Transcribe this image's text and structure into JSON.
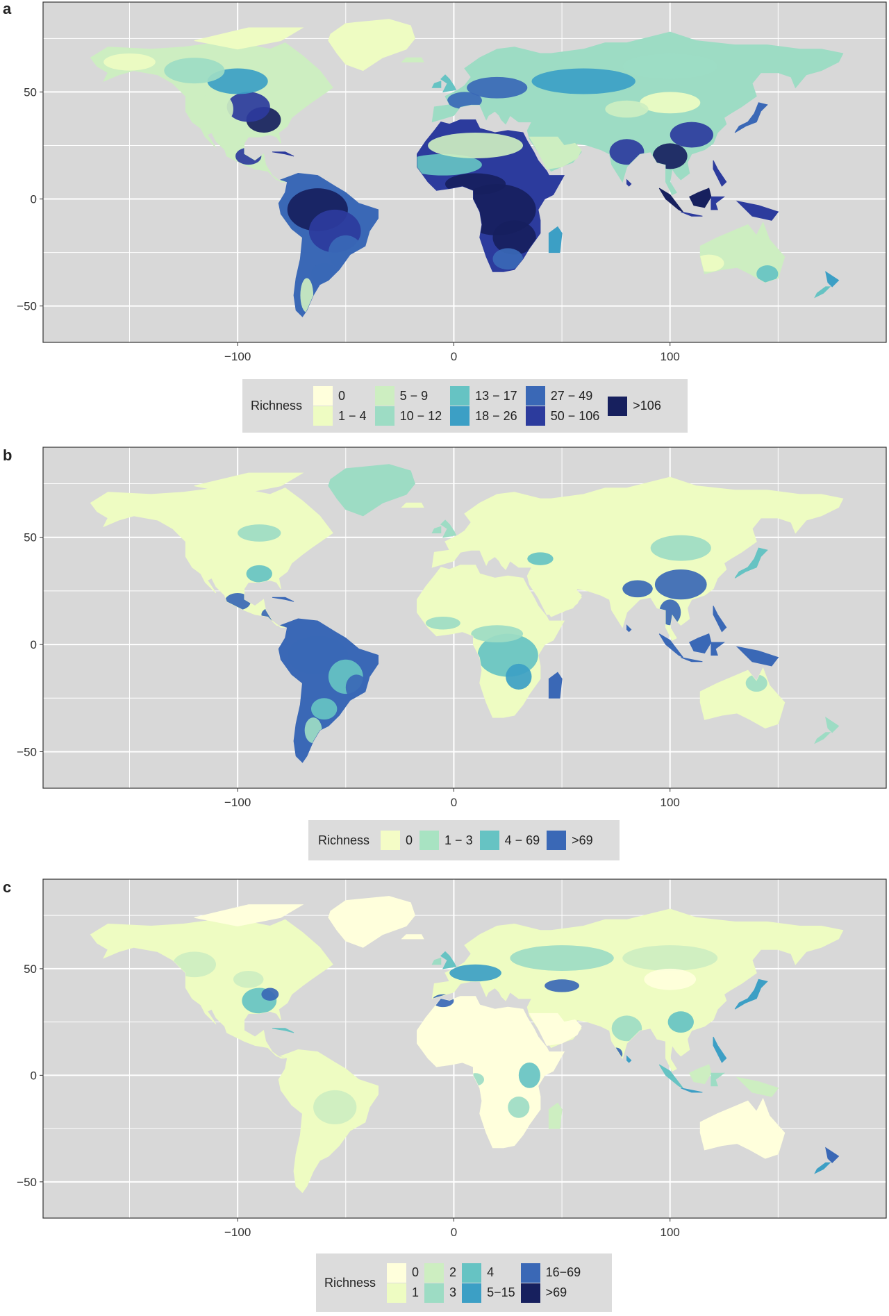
{
  "colors": {
    "panel_bg": "#d8d8d8",
    "grid": "#ffffff",
    "c0": "#ffffdc",
    "c1": "#eefcc2",
    "c2": "#cdeec1",
    "c3": "#9ddcc4",
    "c4": "#66c3c3",
    "c5": "#3c9fc5",
    "c6": "#3a68b6",
    "c7": "#2c3b9d",
    "c8": "#17205e"
  },
  "chart_data": [
    {
      "type": "heatmap",
      "panel": "a",
      "x_ticks": [
        -100,
        0,
        100
      ],
      "y_ticks": [
        50,
        0,
        -50
      ],
      "xlim": [
        -190,
        200
      ],
      "ylim": [
        -67,
        92
      ],
      "grid": true,
      "legend": {
        "title": "Richness",
        "position": "bottom",
        "entries": [
          {
            "label": "0",
            "color": "#ffffdc"
          },
          {
            "label": "1 − 4",
            "color": "#eefcc2"
          },
          {
            "label": "5 − 9",
            "color": "#cdeec1"
          },
          {
            "label": "10 − 12",
            "color": "#9ddcc4"
          },
          {
            "label": "13 − 17",
            "color": "#66c3c3"
          },
          {
            "label": "18 − 26",
            "color": "#3c9fc5"
          },
          {
            "label": "27 − 49",
            "color": "#3a68b6"
          },
          {
            "label": "50 − 106",
            "color": "#2c3b9d"
          },
          {
            "label": ">106",
            "color": "#17205e"
          }
        ]
      }
    },
    {
      "type": "heatmap",
      "panel": "b",
      "x_ticks": [
        -100,
        0,
        100
      ],
      "y_ticks": [
        50,
        0,
        -50
      ],
      "xlim": [
        -190,
        200
      ],
      "ylim": [
        -67,
        92
      ],
      "grid": true,
      "legend": {
        "title": "Richness",
        "position": "bottom",
        "entries": [
          {
            "label": "0",
            "color": "#f4fcc6"
          },
          {
            "label": "1 − 3",
            "color": "#a8e3c2"
          },
          {
            "label": "4 − 69",
            "color": "#66c3c3"
          },
          {
            "label": ">69",
            "color": "#3a68b6"
          }
        ]
      }
    },
    {
      "type": "heatmap",
      "panel": "c",
      "x_ticks": [
        -100,
        0,
        100
      ],
      "y_ticks": [
        50,
        0,
        -50
      ],
      "xlim": [
        -190,
        200
      ],
      "ylim": [
        -67,
        92
      ],
      "grid": true,
      "legend": {
        "title": "Richness",
        "position": "bottom",
        "entries": [
          {
            "label": "0",
            "color": "#ffffdc"
          },
          {
            "label": "1",
            "color": "#eefcc2"
          },
          {
            "label": "2",
            "color": "#cdeec1"
          },
          {
            "label": "3",
            "color": "#9ddcc4"
          },
          {
            "label": "4",
            "color": "#66c3c3"
          },
          {
            "label": "5−15",
            "color": "#3c9fc5"
          },
          {
            "label": "16−69",
            "color": "#3a68b6"
          },
          {
            "label": ">69",
            "color": "#17205e"
          }
        ]
      }
    }
  ],
  "panels": [
    {
      "letter": "a",
      "legend_title": "Richness",
      "tick_x": [
        "−100",
        "0",
        "100"
      ],
      "tick_y": [
        "50",
        "0",
        "−50"
      ]
    },
    {
      "letter": "b",
      "legend_title": "Richness",
      "tick_x": [
        "−100",
        "0",
        "100"
      ],
      "tick_y": [
        "50",
        "0",
        "−50"
      ]
    },
    {
      "letter": "c",
      "legend_title": "Richness",
      "tick_x": [
        "−100",
        "0",
        "100"
      ],
      "tick_y": [
        "50",
        "0",
        "−50"
      ]
    }
  ]
}
